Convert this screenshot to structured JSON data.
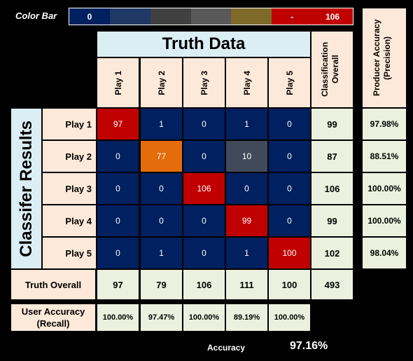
{
  "colorbar": {
    "label": "Color Bar",
    "min_label": "0",
    "mid_label": "-",
    "max_label": "106",
    "colors": [
      "#002060",
      "#1f3864",
      "#404040",
      "#595959",
      "#7f6a2a",
      "#c00000",
      "#c00000"
    ]
  },
  "truth_title": "Truth Data",
  "classifier_title": "Classifer Results",
  "classification_overall_label": "Classification Overall",
  "producer_accuracy_label": "Producer Accuracy (Precision)",
  "truth_overall_label": "Truth Overall",
  "user_accuracy_label": "User Accuracy (Recall)",
  "accuracy_label": "Accuracy",
  "accuracy_value": "97.16%",
  "chart_data": {
    "type": "heatmap",
    "title": "Truth Data",
    "x_labels": [
      "Play 1",
      "Play 2",
      "Play 3",
      "Play 4",
      "Play 5"
    ],
    "y_labels": [
      "Play 1",
      "Play 2",
      "Play 3",
      "Play 4",
      "Play 5"
    ],
    "matrix": [
      [
        97,
        1,
        0,
        1,
        0
      ],
      [
        0,
        77,
        0,
        10,
        0
      ],
      [
        0,
        0,
        106,
        0,
        0
      ],
      [
        0,
        0,
        0,
        99,
        0
      ],
      [
        0,
        1,
        0,
        1,
        100
      ]
    ],
    "row_totals": [
      99,
      87,
      106,
      99,
      102
    ],
    "col_totals": [
      97,
      79,
      106,
      111,
      100
    ],
    "grand_total": 493,
    "producer_accuracy": [
      "97.98%",
      "88.51%",
      "100.00%",
      "100.00%",
      "98.04%"
    ],
    "user_accuracy": [
      "100.00%",
      "97.47%",
      "100.00%",
      "89.19%",
      "100.00%"
    ],
    "color_range": [
      0,
      106
    ]
  }
}
